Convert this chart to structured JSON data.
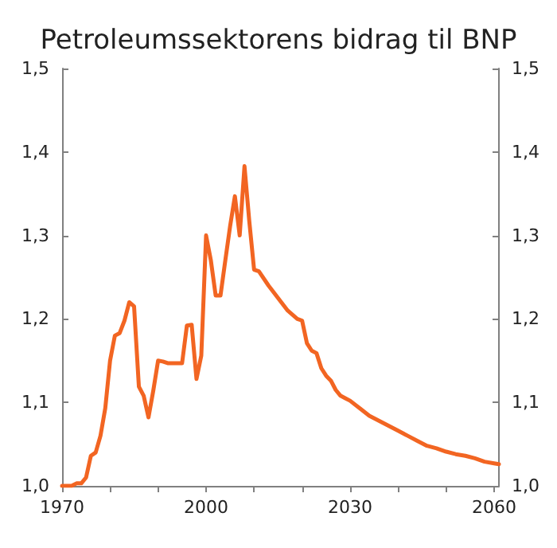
{
  "chart_data": {
    "type": "line",
    "title": "Petroleumssektorens bidrag til BNP",
    "x": [
      1970,
      1972,
      1973,
      1974,
      1975,
      1976,
      1977,
      1978,
      1979,
      1980,
      1981,
      1982,
      1983,
      1984,
      1985,
      1986,
      1987,
      1988,
      1989,
      1990,
      1991,
      1992,
      1993,
      1994,
      1995,
      1996,
      1997,
      1998,
      1999,
      2000,
      2001,
      2002,
      2003,
      2004,
      2005,
      2006,
      2007,
      2008,
      2009,
      2010,
      2011,
      2013,
      2015,
      2017,
      2019,
      2020,
      2021,
      2022,
      2023,
      2024,
      2025,
      2026,
      2027,
      2028,
      2029,
      2030,
      2032,
      2034,
      2036,
      2038,
      2040,
      2042,
      2044,
      2046,
      2048,
      2050,
      2052,
      2054,
      2056,
      2058,
      2060,
      2061
    ],
    "series": [
      {
        "color": "#f26522",
        "values": [
          1.0,
          1.0,
          1.003,
          1.003,
          1.01,
          1.036,
          1.04,
          1.06,
          1.093,
          1.15,
          1.18,
          1.183,
          1.198,
          1.22,
          1.215,
          1.119,
          1.108,
          1.082,
          1.114,
          1.15,
          1.149,
          1.147,
          1.147,
          1.147,
          1.147,
          1.192,
          1.193,
          1.128,
          1.156,
          1.3,
          1.27,
          1.228,
          1.228,
          1.27,
          1.311,
          1.347,
          1.3,
          1.383,
          1.317,
          1.259,
          1.257,
          1.24,
          1.225,
          1.21,
          1.2,
          1.198,
          1.171,
          1.162,
          1.159,
          1.141,
          1.132,
          1.126,
          1.115,
          1.108,
          1.105,
          1.102,
          1.093,
          1.084,
          1.078,
          1.072,
          1.066,
          1.06,
          1.054,
          1.048,
          1.045,
          1.041,
          1.038,
          1.036,
          1.033,
          1.029,
          1.027,
          1.026
        ]
      }
    ],
    "xlim": [
      1970,
      2061
    ],
    "xticks": [
      1970,
      {
        "value": 1980,
        "label": null
      },
      {
        "value": 1990,
        "label": null
      },
      2000,
      {
        "value": 2010,
        "label": null
      },
      {
        "value": 2020,
        "label": null
      },
      2030,
      {
        "value": 2040,
        "label": null
      },
      {
        "value": 2050,
        "label": null
      },
      2060
    ],
    "ylim": [
      1.0,
      1.5
    ],
    "yticks": [
      {
        "value": 1.0,
        "label": "1,0"
      },
      {
        "value": 1.1,
        "label": "1,1"
      },
      {
        "value": 1.2,
        "label": "1,2"
      },
      {
        "value": 1.3,
        "label": "1,3"
      },
      {
        "value": 1.4,
        "label": "1,4"
      },
      {
        "value": 1.5,
        "label": "1,5"
      }
    ],
    "y2lim": [
      1.0,
      1.5
    ],
    "y2ticks": [
      {
        "value": 1.0,
        "label": "1,0"
      },
      {
        "value": 1.1,
        "label": "1,1"
      },
      {
        "value": 1.2,
        "label": "1,2"
      },
      {
        "value": 1.3,
        "label": "1,3"
      },
      {
        "value": 1.4,
        "label": "1,4"
      },
      {
        "value": 1.5,
        "label": "1,5"
      }
    ],
    "grid": false,
    "marker": "none",
    "line_style": "solid"
  }
}
